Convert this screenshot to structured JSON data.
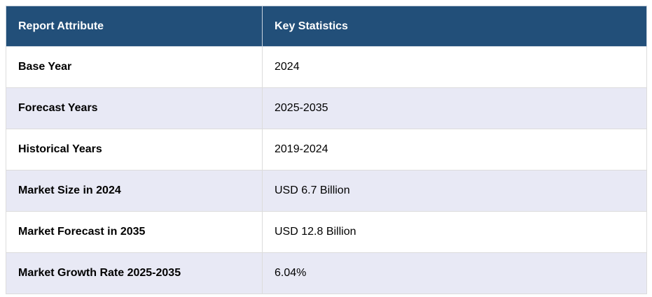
{
  "headers": {
    "attribute": "Report Attribute",
    "stats": "Key Statistics"
  },
  "rows": [
    {
      "attribute": "Base Year",
      "value": "2024"
    },
    {
      "attribute": "Forecast Years",
      "value": "2025-2035"
    },
    {
      "attribute": "Historical Years",
      "value": "2019-2024"
    },
    {
      "attribute": "Market Size in 2024",
      "value": "USD 6.7 Billion"
    },
    {
      "attribute": "Market Forecast in 2035",
      "value": "USD 12.8 Billion"
    },
    {
      "attribute": "Market Growth Rate 2025-2035",
      "value": "6.04%"
    }
  ]
}
